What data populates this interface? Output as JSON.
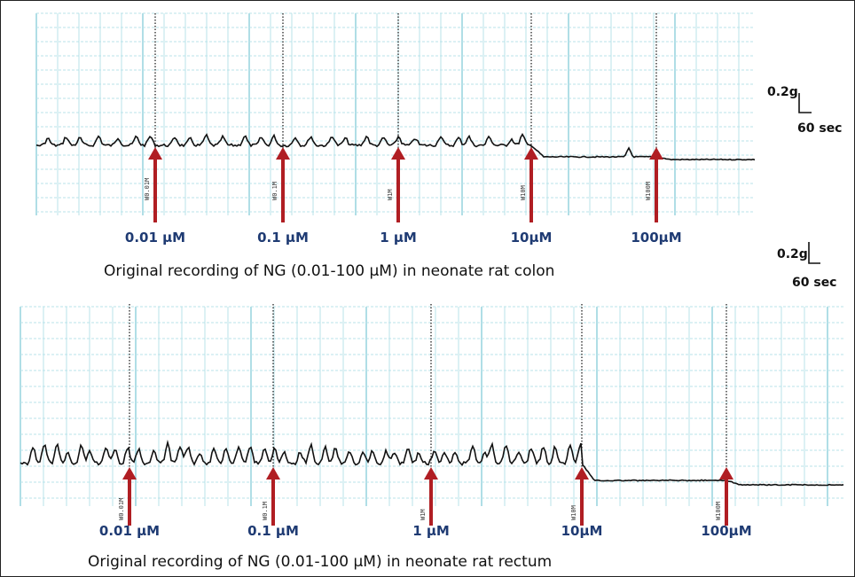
{
  "colors": {
    "grid_minor": "#b9e3ea",
    "grid_major": "#8fcfdb",
    "trace": "#111111",
    "arrow": "#b01e23",
    "dose_label": "#1f3b73",
    "marker_line": "#111111"
  },
  "chart_data": [
    {
      "type": "line",
      "title": "Original recording of NG (0.01-100 µM) in neonate rat colon",
      "scale_bar": {
        "force": "0.2g",
        "time": "60 sec"
      },
      "doses": [
        "0.01 µM",
        "0.1 µM",
        "1 µM",
        "10µM",
        "100µM"
      ],
      "additions": [
        {
          "dose": "0.01 µM",
          "stamp": "W0.01M"
        },
        {
          "dose": "0.1 µM",
          "stamp": "W0.1M"
        },
        {
          "dose": "1 µM",
          "stamp": "W1M"
        },
        {
          "dose": "10µM",
          "stamp": "W10M"
        },
        {
          "dose": "100µM",
          "stamp": "W100M"
        }
      ],
      "grid": true,
      "trace_pattern": "spiky_low"
    },
    {
      "type": "line",
      "title": "Original recording of NG (0.01-100 µM) in neonate rat rectum",
      "scale_bar": {
        "force": "0.2g",
        "time": "60 sec"
      },
      "doses": [
        "0.01 µM",
        "0.1 µM",
        "1 µM",
        "10µM",
        "100µM"
      ],
      "additions": [
        {
          "dose": "0.01 µM",
          "stamp": "W0.01M"
        },
        {
          "dose": "0.1 µM",
          "stamp": "W0.1M"
        },
        {
          "dose": "1 µM",
          "stamp": "W1M"
        },
        {
          "dose": "10µM",
          "stamp": "W10M"
        },
        {
          "dose": "100µM",
          "stamp": "W100M"
        }
      ],
      "grid": true,
      "trace_pattern": "spiky_high"
    }
  ]
}
